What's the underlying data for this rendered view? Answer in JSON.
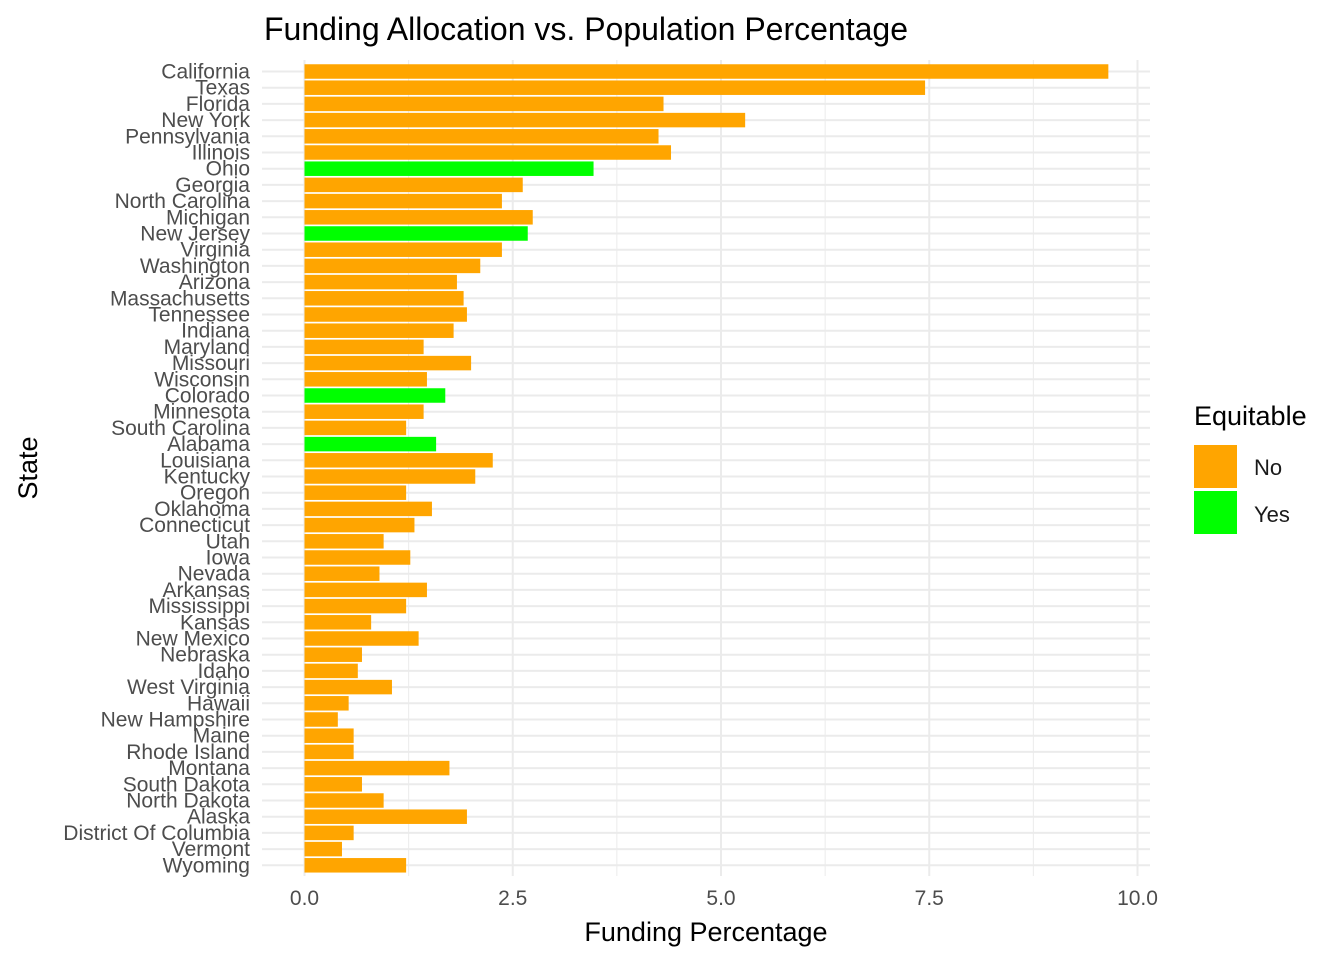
{
  "chart_data": {
    "type": "bar",
    "orientation": "horizontal",
    "title": "Funding Allocation vs. Population Percentage",
    "xlabel": "Funding Percentage",
    "ylabel": "State",
    "xlim": [
      0,
      10
    ],
    "x_ticks": [
      "0.0",
      "2.5",
      "5.0",
      "7.5",
      "10.0"
    ],
    "x_tick_values": [
      0,
      2.5,
      5,
      7.5,
      10
    ],
    "grid": true,
    "legend": {
      "title": "Equitable",
      "position": "right",
      "entries": [
        {
          "label": "No",
          "color": "#FFA500"
        },
        {
          "label": "Yes",
          "color": "#00FF00"
        }
      ]
    },
    "categories": [
      "California",
      "Texas",
      "Florida",
      "New York",
      "Pennsylvania",
      "Illinois",
      "Ohio",
      "Georgia",
      "North Carolina",
      "Michigan",
      "New Jersey",
      "Virginia",
      "Washington",
      "Arizona",
      "Massachusetts",
      "Tennessee",
      "Indiana",
      "Maryland",
      "Missouri",
      "Wisconsin",
      "Colorado",
      "Minnesota",
      "South Carolina",
      "Alabama",
      "Louisiana",
      "Kentucky",
      "Oregon",
      "Oklahoma",
      "Connecticut",
      "Utah",
      "Iowa",
      "Nevada",
      "Arkansas",
      "Mississippi",
      "Kansas",
      "New Mexico",
      "Nebraska",
      "Idaho",
      "West Virginia",
      "Hawaii",
      "New Hampshire",
      "Maine",
      "Rhode Island",
      "Montana",
      "South Dakota",
      "North Dakota",
      "Alaska",
      "District Of Columbia",
      "Vermont",
      "Wyoming"
    ],
    "values": [
      9.65,
      7.45,
      4.31,
      5.29,
      4.25,
      4.4,
      3.47,
      2.62,
      2.37,
      2.74,
      2.68,
      2.37,
      2.11,
      1.83,
      1.91,
      1.95,
      1.79,
      1.43,
      2.0,
      1.47,
      1.69,
      1.43,
      1.22,
      1.58,
      2.26,
      2.05,
      1.22,
      1.53,
      1.32,
      0.95,
      1.27,
      0.9,
      1.47,
      1.22,
      0.8,
      1.37,
      0.69,
      0.64,
      1.05,
      0.53,
      0.4,
      0.59,
      0.59,
      1.74,
      0.69,
      0.95,
      1.95,
      0.59,
      0.45,
      1.22
    ],
    "equitable": [
      "No",
      "No",
      "No",
      "No",
      "No",
      "No",
      "Yes",
      "No",
      "No",
      "No",
      "Yes",
      "No",
      "No",
      "No",
      "No",
      "No",
      "No",
      "No",
      "No",
      "No",
      "Yes",
      "No",
      "No",
      "Yes",
      "No",
      "No",
      "No",
      "No",
      "No",
      "No",
      "No",
      "No",
      "No",
      "No",
      "No",
      "No",
      "No",
      "No",
      "No",
      "No",
      "No",
      "No",
      "No",
      "No",
      "No",
      "No",
      "No",
      "No",
      "No",
      "No"
    ]
  }
}
